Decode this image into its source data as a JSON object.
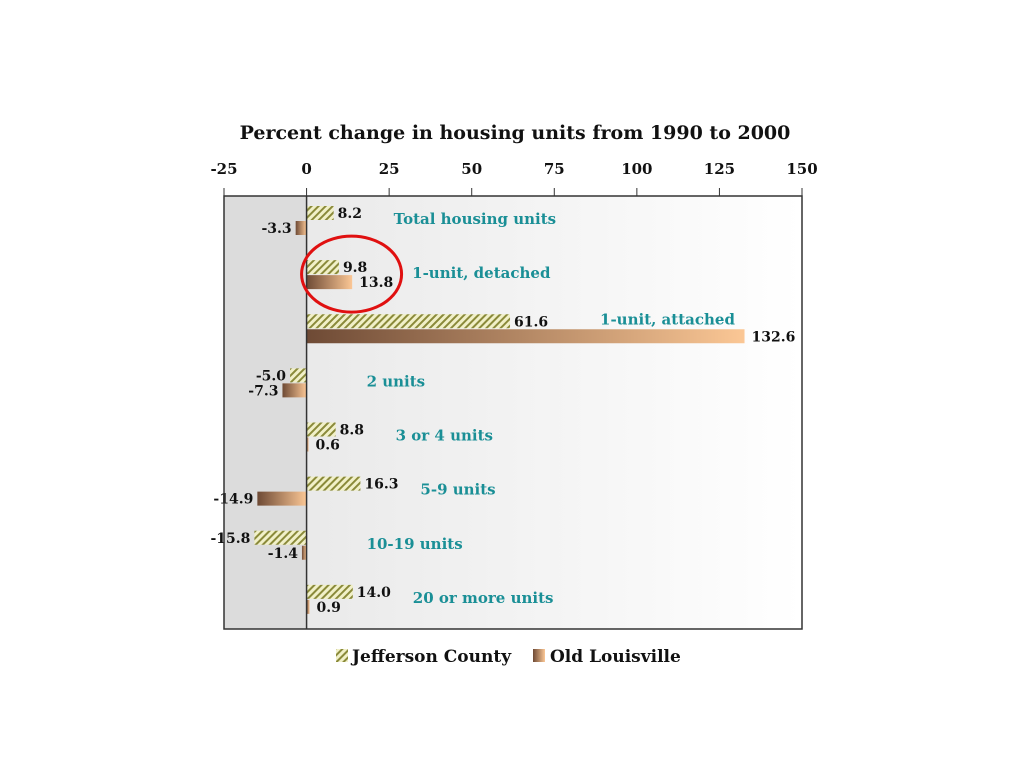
{
  "chart_data": {
    "type": "bar",
    "orientation": "horizontal",
    "title": "Percent change in housing units from 1990 to 2000",
    "xlim": [
      -25,
      150
    ],
    "xticks": [
      -25,
      0,
      25,
      50,
      75,
      100,
      125,
      150
    ],
    "tick_labels": [
      "-25",
      "0",
      "25",
      "50",
      "75",
      "100",
      "125",
      "150"
    ],
    "categories": [
      "Total housing units",
      "1-unit, detached",
      "1-unit, attached",
      "2 units",
      "3 or 4 units",
      "5-9 units",
      "10-19 units",
      "20 or more units"
    ],
    "series": [
      {
        "name": "Jefferson County",
        "values": [
          8.2,
          9.8,
          61.6,
          -5.0,
          8.8,
          16.3,
          -15.8,
          14.0
        ],
        "labels": [
          "8.2",
          "9.8",
          "61.6",
          "-5.0",
          "8.8",
          "16.3",
          "-15.8",
          "14.0"
        ]
      },
      {
        "name": "Old Louisville",
        "values": [
          -3.3,
          13.8,
          132.6,
          -7.3,
          0.6,
          -14.9,
          -1.4,
          0.9
        ],
        "labels": [
          "-3.3",
          "13.8",
          "132.6",
          "-7.3",
          "0.6",
          "-14.9",
          "-1.4",
          "0.9"
        ]
      }
    ],
    "legend_position": "bottom",
    "highlight": "1-unit, detached",
    "colors": {
      "jefferson_hatch": "#8a8a3a",
      "jefferson_bg": "#f1f0c8",
      "louisville_dark": "#6e4a35",
      "louisville_light": "#fbc795",
      "category_label": "#1a8f96",
      "highlight_circle": "#e01010"
    }
  }
}
